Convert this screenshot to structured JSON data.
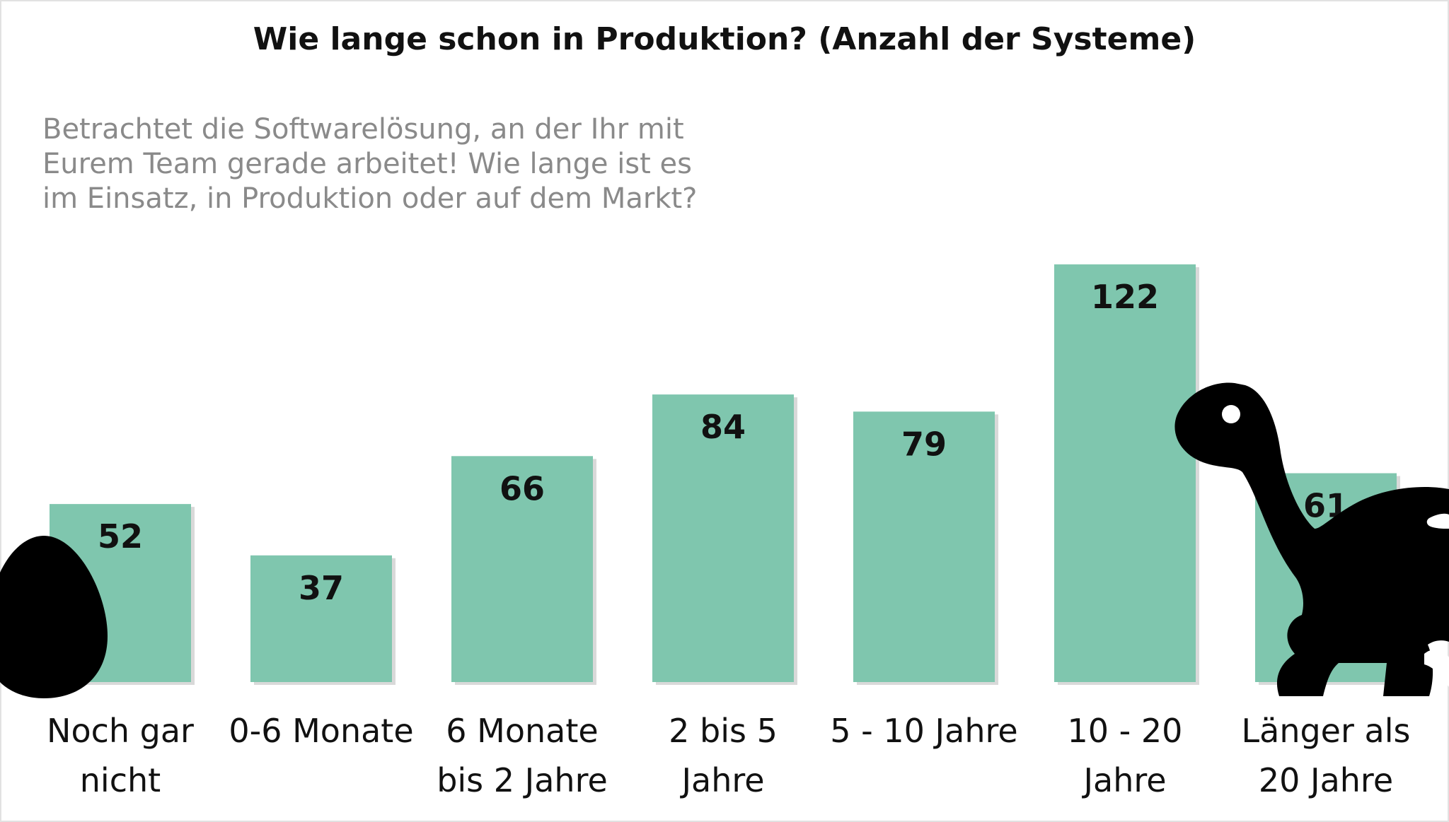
{
  "chart_data": {
    "type": "bar",
    "title": "Wie lange schon in Produktion? (Anzahl der Systeme)",
    "subtitle": [
      "Betrachtet die Softwarelösung, an der Ihr mit",
      "Eurem Team gerade arbeitet! Wie lange ist es",
      "im Einsatz, in Produktion oder auf dem Markt?"
    ],
    "categories": [
      [
        "Noch gar",
        "nicht"
      ],
      [
        "0-6 Monate"
      ],
      [
        "6 Monate",
        "bis 2 Jahre"
      ],
      [
        "2 bis 5",
        "Jahre"
      ],
      [
        "5 - 10 Jahre"
      ],
      [
        "10 - 20",
        "Jahre"
      ],
      [
        "Länger als",
        "20 Jahre"
      ]
    ],
    "values": [
      52,
      37,
      66,
      84,
      79,
      122,
      61
    ],
    "ylim": [
      0,
      160
    ],
    "xlabel": "",
    "ylabel": "",
    "grid": false,
    "bar_color": "#7fc6ae",
    "icons": [
      "egg-icon",
      "dinosaur-icon"
    ]
  }
}
